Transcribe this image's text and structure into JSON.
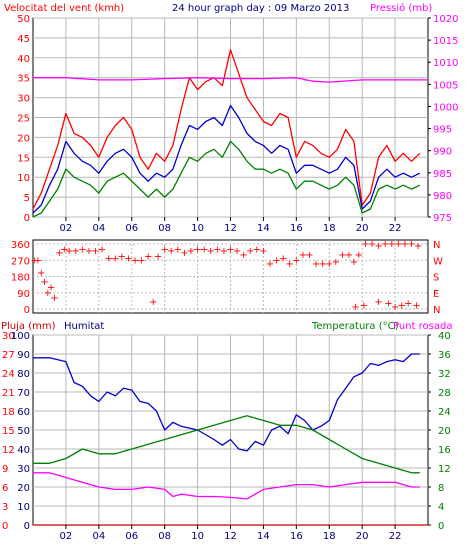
{
  "header": {
    "left_label": "Velocitat del vent (kmh)",
    "center_title": "24 hour graph day : 09 Marzo 2013",
    "right_label": "Pressió (mb)"
  },
  "lower_header": {
    "pluja": "Pluja (mm)",
    "humitat": "Humitat",
    "temperatura": "Temperatura (°C)",
    "punt_rosada": "Punt rosada"
  },
  "x_ticks": [
    "02",
    "04",
    "06",
    "08",
    "10",
    "12",
    "14",
    "16",
    "18",
    "20",
    "22"
  ],
  "compass": [
    "N",
    "W",
    "S",
    "E",
    "N"
  ],
  "colors": {
    "red": "#ff0000",
    "blue": "#0000cc",
    "green": "#008000",
    "magenta": "#ff00ff",
    "dark_red": "#cc0000",
    "navy": "#000080",
    "axis": "#000000",
    "grid": "#b8b8b8"
  },
  "chart_data": [
    {
      "type": "line",
      "title": "24 hour graph day : 09 Marzo 2013",
      "x_unit": "hour",
      "xlim": [
        0,
        24
      ],
      "x_ticks": [
        "02",
        "04",
        "06",
        "08",
        "10",
        "12",
        "14",
        "16",
        "18",
        "20",
        "22"
      ],
      "left_axis": {
        "label": "Velocitat del vent (kmh)",
        "ylim": [
          0,
          50
        ],
        "ticks": [
          0,
          5,
          10,
          15,
          20,
          25,
          30,
          35,
          40,
          45,
          50
        ]
      },
      "right_axis": {
        "label": "Pressió (mb)",
        "ylim": [
          975,
          1020
        ],
        "ticks": [
          975,
          980,
          985,
          990,
          995,
          1000,
          1005,
          1010,
          1015,
          1020
        ]
      },
      "grid": true,
      "series": [
        {
          "color": "#ff0000",
          "axis": "left",
          "x": [
            0,
            0.5,
            1,
            1.5,
            2,
            2.5,
            3,
            3.5,
            4,
            4.5,
            5,
            5.5,
            6,
            6.5,
            7,
            7.5,
            8,
            8.5,
            9,
            9.5,
            10,
            10.5,
            11,
            11.5,
            12,
            12.5,
            13,
            13.5,
            14,
            14.5,
            15,
            15.5,
            16,
            16.5,
            17,
            17.5,
            18,
            18.5,
            19,
            19.5,
            20,
            20.5,
            21,
            21.5,
            22,
            22.5,
            23,
            23.5
          ],
          "values": [
            2,
            6,
            12,
            18,
            26,
            21,
            20,
            18,
            15,
            20,
            23,
            25,
            22,
            15,
            12,
            16,
            14,
            18,
            27,
            35,
            32,
            34,
            35,
            33,
            42,
            36,
            30,
            27,
            24,
            23,
            26,
            25,
            15,
            19,
            18,
            16,
            15,
            17,
            22,
            19,
            3,
            6,
            15,
            18,
            14,
            16,
            14,
            16
          ]
        },
        {
          "color": "#0000cc",
          "axis": "left",
          "x": [
            0,
            0.5,
            1,
            1.5,
            2,
            2.5,
            3,
            3.5,
            4,
            4.5,
            5,
            5.5,
            6,
            6.5,
            7,
            7.5,
            8,
            8.5,
            9,
            9.5,
            10,
            10.5,
            11,
            11.5,
            12,
            12.5,
            13,
            13.5,
            14,
            14.5,
            15,
            15.5,
            16,
            16.5,
            17,
            17.5,
            18,
            18.5,
            19,
            19.5,
            20,
            20.5,
            21,
            21.5,
            22,
            22.5,
            23,
            23.5
          ],
          "values": [
            1,
            3,
            8,
            12,
            19,
            16,
            14,
            13,
            11,
            14,
            16,
            17,
            15,
            11,
            9,
            11,
            10,
            12,
            18,
            23,
            22,
            24,
            25,
            23,
            28,
            25,
            21,
            19,
            18,
            16,
            18,
            17,
            11,
            13,
            13,
            12,
            11,
            12,
            15,
            13,
            2,
            4,
            10,
            12,
            10,
            11,
            10,
            11
          ]
        },
        {
          "color": "#008000",
          "axis": "left",
          "x": [
            0,
            0.5,
            1,
            1.5,
            2,
            2.5,
            3,
            3.5,
            4,
            4.5,
            5,
            5.5,
            6,
            6.5,
            7,
            7.5,
            8,
            8.5,
            9,
            9.5,
            10,
            10.5,
            11,
            11.5,
            12,
            12.5,
            13,
            13.5,
            14,
            14.5,
            15,
            15.5,
            16,
            16.5,
            17,
            17.5,
            18,
            18.5,
            19,
            19.5,
            20,
            20.5,
            21,
            21.5,
            22,
            22.5,
            23,
            23.5
          ],
          "values": [
            0,
            1,
            4,
            7,
            12,
            10,
            9,
            8,
            6,
            9,
            10,
            11,
            9,
            7,
            5,
            7,
            5,
            7,
            11,
            15,
            14,
            16,
            17,
            15,
            19,
            17,
            14,
            12,
            12,
            11,
            12,
            11,
            7,
            9,
            9,
            8,
            7,
            8,
            10,
            8,
            1,
            2,
            7,
            8,
            7,
            8,
            7,
            8
          ]
        },
        {
          "color": "#ff00ff",
          "axis": "right",
          "x": [
            0,
            2,
            4,
            6,
            8,
            10,
            12,
            14,
            16,
            17,
            18,
            20,
            22,
            24
          ],
          "values": [
            1006.5,
            1006.5,
            1006,
            1006,
            1006.3,
            1006.5,
            1006.3,
            1006.3,
            1006.5,
            1005.7,
            1005.5,
            1006,
            1006,
            1006
          ]
        }
      ]
    },
    {
      "type": "scatter",
      "title": "",
      "x_unit": "hour",
      "xlim": [
        0,
        24
      ],
      "ylim": [
        0,
        360
      ],
      "y_ticks": [
        0,
        90,
        180,
        270,
        360
      ],
      "compass_labels": [
        "N",
        "W",
        "S",
        "E",
        "N"
      ],
      "series": [
        {
          "color": "#ff0000",
          "x": [
            0.1,
            0.3,
            0.5,
            0.7,
            0.9,
            1.1,
            1.3,
            1.6,
            1.9,
            2.2,
            2.6,
            3.0,
            3.4,
            3.8,
            4.2,
            4.6,
            5.0,
            5.4,
            5.8,
            6.2,
            6.6,
            7.0,
            7.3,
            7.6,
            8.0,
            8.4,
            8.8,
            9.2,
            9.6,
            10.0,
            10.4,
            10.8,
            11.2,
            11.6,
            12.0,
            12.4,
            12.8,
            13.2,
            13.6,
            14.0,
            14.4,
            14.8,
            15.2,
            15.6,
            16.0,
            16.4,
            16.8,
            17.2,
            17.6,
            18.0,
            18.4,
            18.8,
            19.2,
            19.5,
            19.8,
            20.2,
            20.6,
            21.0,
            21.4,
            21.8,
            22.2,
            22.6,
            23.0,
            23.4
          ],
          "values": [
            270,
            270,
            200,
            150,
            90,
            120,
            60,
            310,
            330,
            320,
            320,
            330,
            320,
            320,
            330,
            280,
            280,
            290,
            280,
            270,
            270,
            290,
            40,
            290,
            330,
            320,
            330,
            310,
            320,
            330,
            330,
            320,
            330,
            320,
            330,
            320,
            300,
            320,
            330,
            320,
            250,
            270,
            280,
            250,
            270,
            300,
            300,
            250,
            250,
            250,
            260,
            300,
            300,
            260,
            300,
            360,
            360,
            350,
            360,
            360,
            360,
            360,
            360,
            350
          ]
        },
        {
          "color": "#ff0000",
          "x": [
            19.6,
            20.1,
            21.0,
            21.6,
            22.0,
            22.4,
            22.8,
            23.3
          ],
          "values": [
            10,
            20,
            40,
            30,
            10,
            20,
            30,
            20
          ]
        }
      ]
    },
    {
      "type": "line",
      "title": "",
      "x_unit": "hour",
      "xlim": [
        0,
        24
      ],
      "x_ticks": [
        "02",
        "04",
        "06",
        "08",
        "10",
        "12",
        "14",
        "16",
        "18",
        "20",
        "22"
      ],
      "left_axes": [
        {
          "label": "Pluja (mm)",
          "ylim": [
            0,
            30
          ],
          "ticks": [
            0,
            3,
            6,
            9,
            12,
            15,
            18,
            21,
            24,
            27,
            30
          ]
        },
        {
          "label": "Humitat",
          "ylim": [
            0,
            100
          ],
          "ticks": [
            0,
            10,
            20,
            30,
            40,
            50,
            60,
            70,
            80,
            90,
            100
          ]
        }
      ],
      "right_axis": {
        "label": "Temperatura (°C)",
        "ylim": [
          0,
          40
        ],
        "ticks": [
          0,
          4,
          8,
          12,
          16,
          20,
          24,
          28,
          32,
          36,
          40
        ]
      },
      "grid": true,
      "series": [
        {
          "color": "#0000cc",
          "axis": "humitat",
          "x": [
            0,
            1,
            2,
            2.5,
            3,
            3.5,
            4,
            4.5,
            5,
            5.5,
            6,
            6.5,
            7,
            7.5,
            8,
            8.5,
            9,
            10,
            11,
            11.5,
            12,
            12.5,
            13,
            13.5,
            14,
            14.5,
            15,
            15.5,
            16,
            16.5,
            17,
            17.5,
            18,
            18.5,
            19,
            19.5,
            20,
            20.5,
            21,
            21.5,
            22,
            22.5,
            23,
            23.5
          ],
          "values": [
            88,
            88,
            86,
            75,
            73,
            68,
            65,
            70,
            68,
            72,
            71,
            65,
            64,
            60,
            50,
            54,
            52,
            50,
            45,
            42,
            45,
            40,
            39,
            44,
            42,
            50,
            52,
            48,
            58,
            55,
            50,
            52,
            55,
            66,
            72,
            78,
            80,
            85,
            84,
            86,
            87,
            86,
            90,
            90
          ]
        },
        {
          "color": "#008000",
          "axis": "temp",
          "x": [
            0,
            1,
            2,
            3,
            4,
            5,
            6,
            7,
            8,
            9,
            10,
            11,
            12,
            13,
            14,
            15,
            16,
            17,
            18,
            19,
            20,
            21,
            22,
            23,
            23.5
          ],
          "values": [
            13,
            13,
            14,
            16,
            15,
            15,
            16,
            17,
            18,
            19,
            20,
            21,
            22,
            23,
            22,
            21,
            21,
            20,
            18,
            16,
            14,
            13,
            12,
            11,
            11
          ]
        },
        {
          "color": "#ff00ff",
          "axis": "temp",
          "x": [
            0,
            1,
            2,
            3,
            4,
            5,
            6,
            7,
            8,
            8.5,
            9,
            10,
            11,
            12,
            13,
            14,
            15,
            16,
            17,
            18,
            19,
            20,
            21,
            22,
            23,
            23.5
          ],
          "values": [
            11,
            11,
            10,
            9,
            8,
            7.5,
            7.5,
            8,
            7.5,
            6,
            6.5,
            6,
            6,
            5.8,
            5.5,
            7.5,
            8,
            8.5,
            8.5,
            8,
            8.5,
            9,
            9,
            9,
            8,
            8
          ]
        },
        {
          "color": "#cc0000",
          "axis": "pluja",
          "x": [
            0,
            24
          ],
          "values": [
            0,
            0
          ]
        }
      ]
    }
  ]
}
